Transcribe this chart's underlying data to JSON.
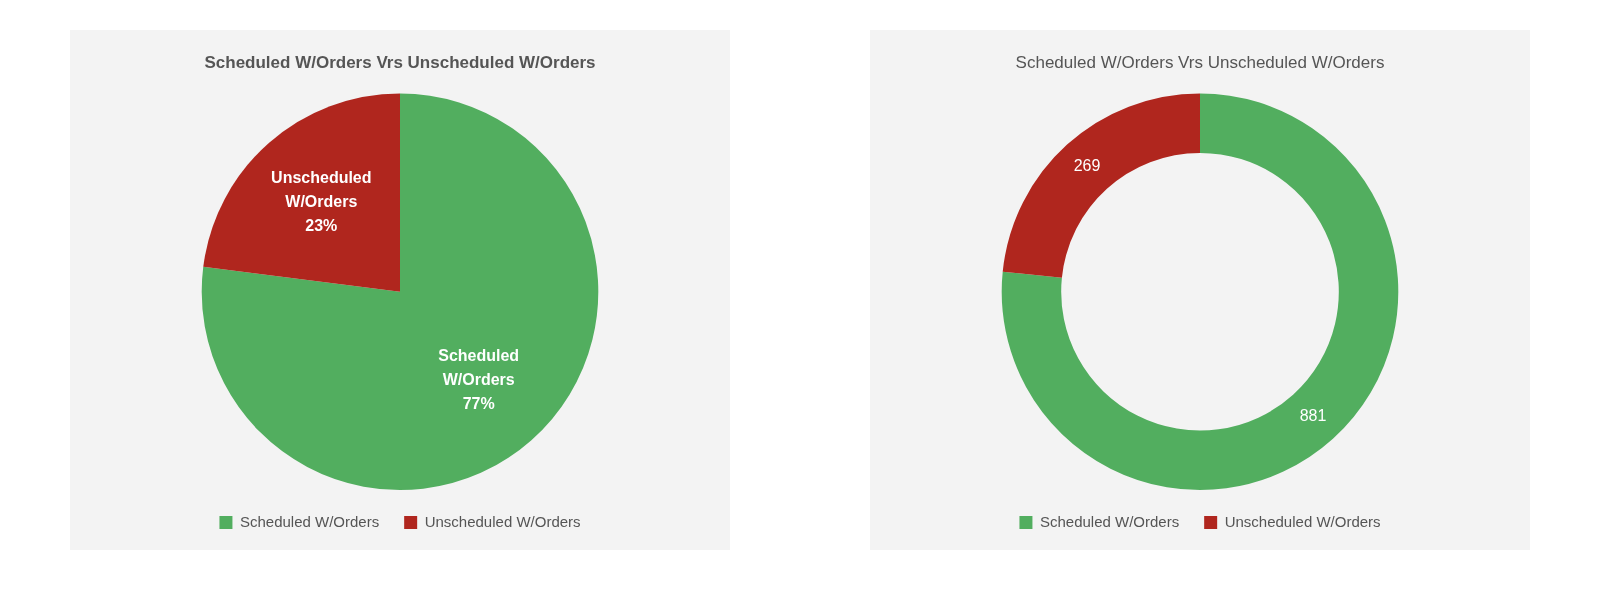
{
  "chart_data": [
    {
      "type": "pie",
      "title": "Scheduled W/Orders Vrs Unscheduled W/Orders",
      "categories": [
        "Scheduled W/Orders",
        "Unscheduled W/Orders"
      ],
      "values": [
        77,
        23
      ],
      "colors": [
        "#52ae5f",
        "#b0261e"
      ],
      "value_labels": [
        "77%",
        "23%"
      ],
      "legend": "bottom"
    },
    {
      "type": "donut",
      "title": "Scheduled W/Orders Vrs Unscheduled W/Orders",
      "categories": [
        "Scheduled W/Orders",
        "Unscheduled W/Orders"
      ],
      "values": [
        881,
        269
      ],
      "colors": [
        "#52ae5f",
        "#b0261e"
      ],
      "data_labels": true,
      "legend": "bottom"
    }
  ]
}
